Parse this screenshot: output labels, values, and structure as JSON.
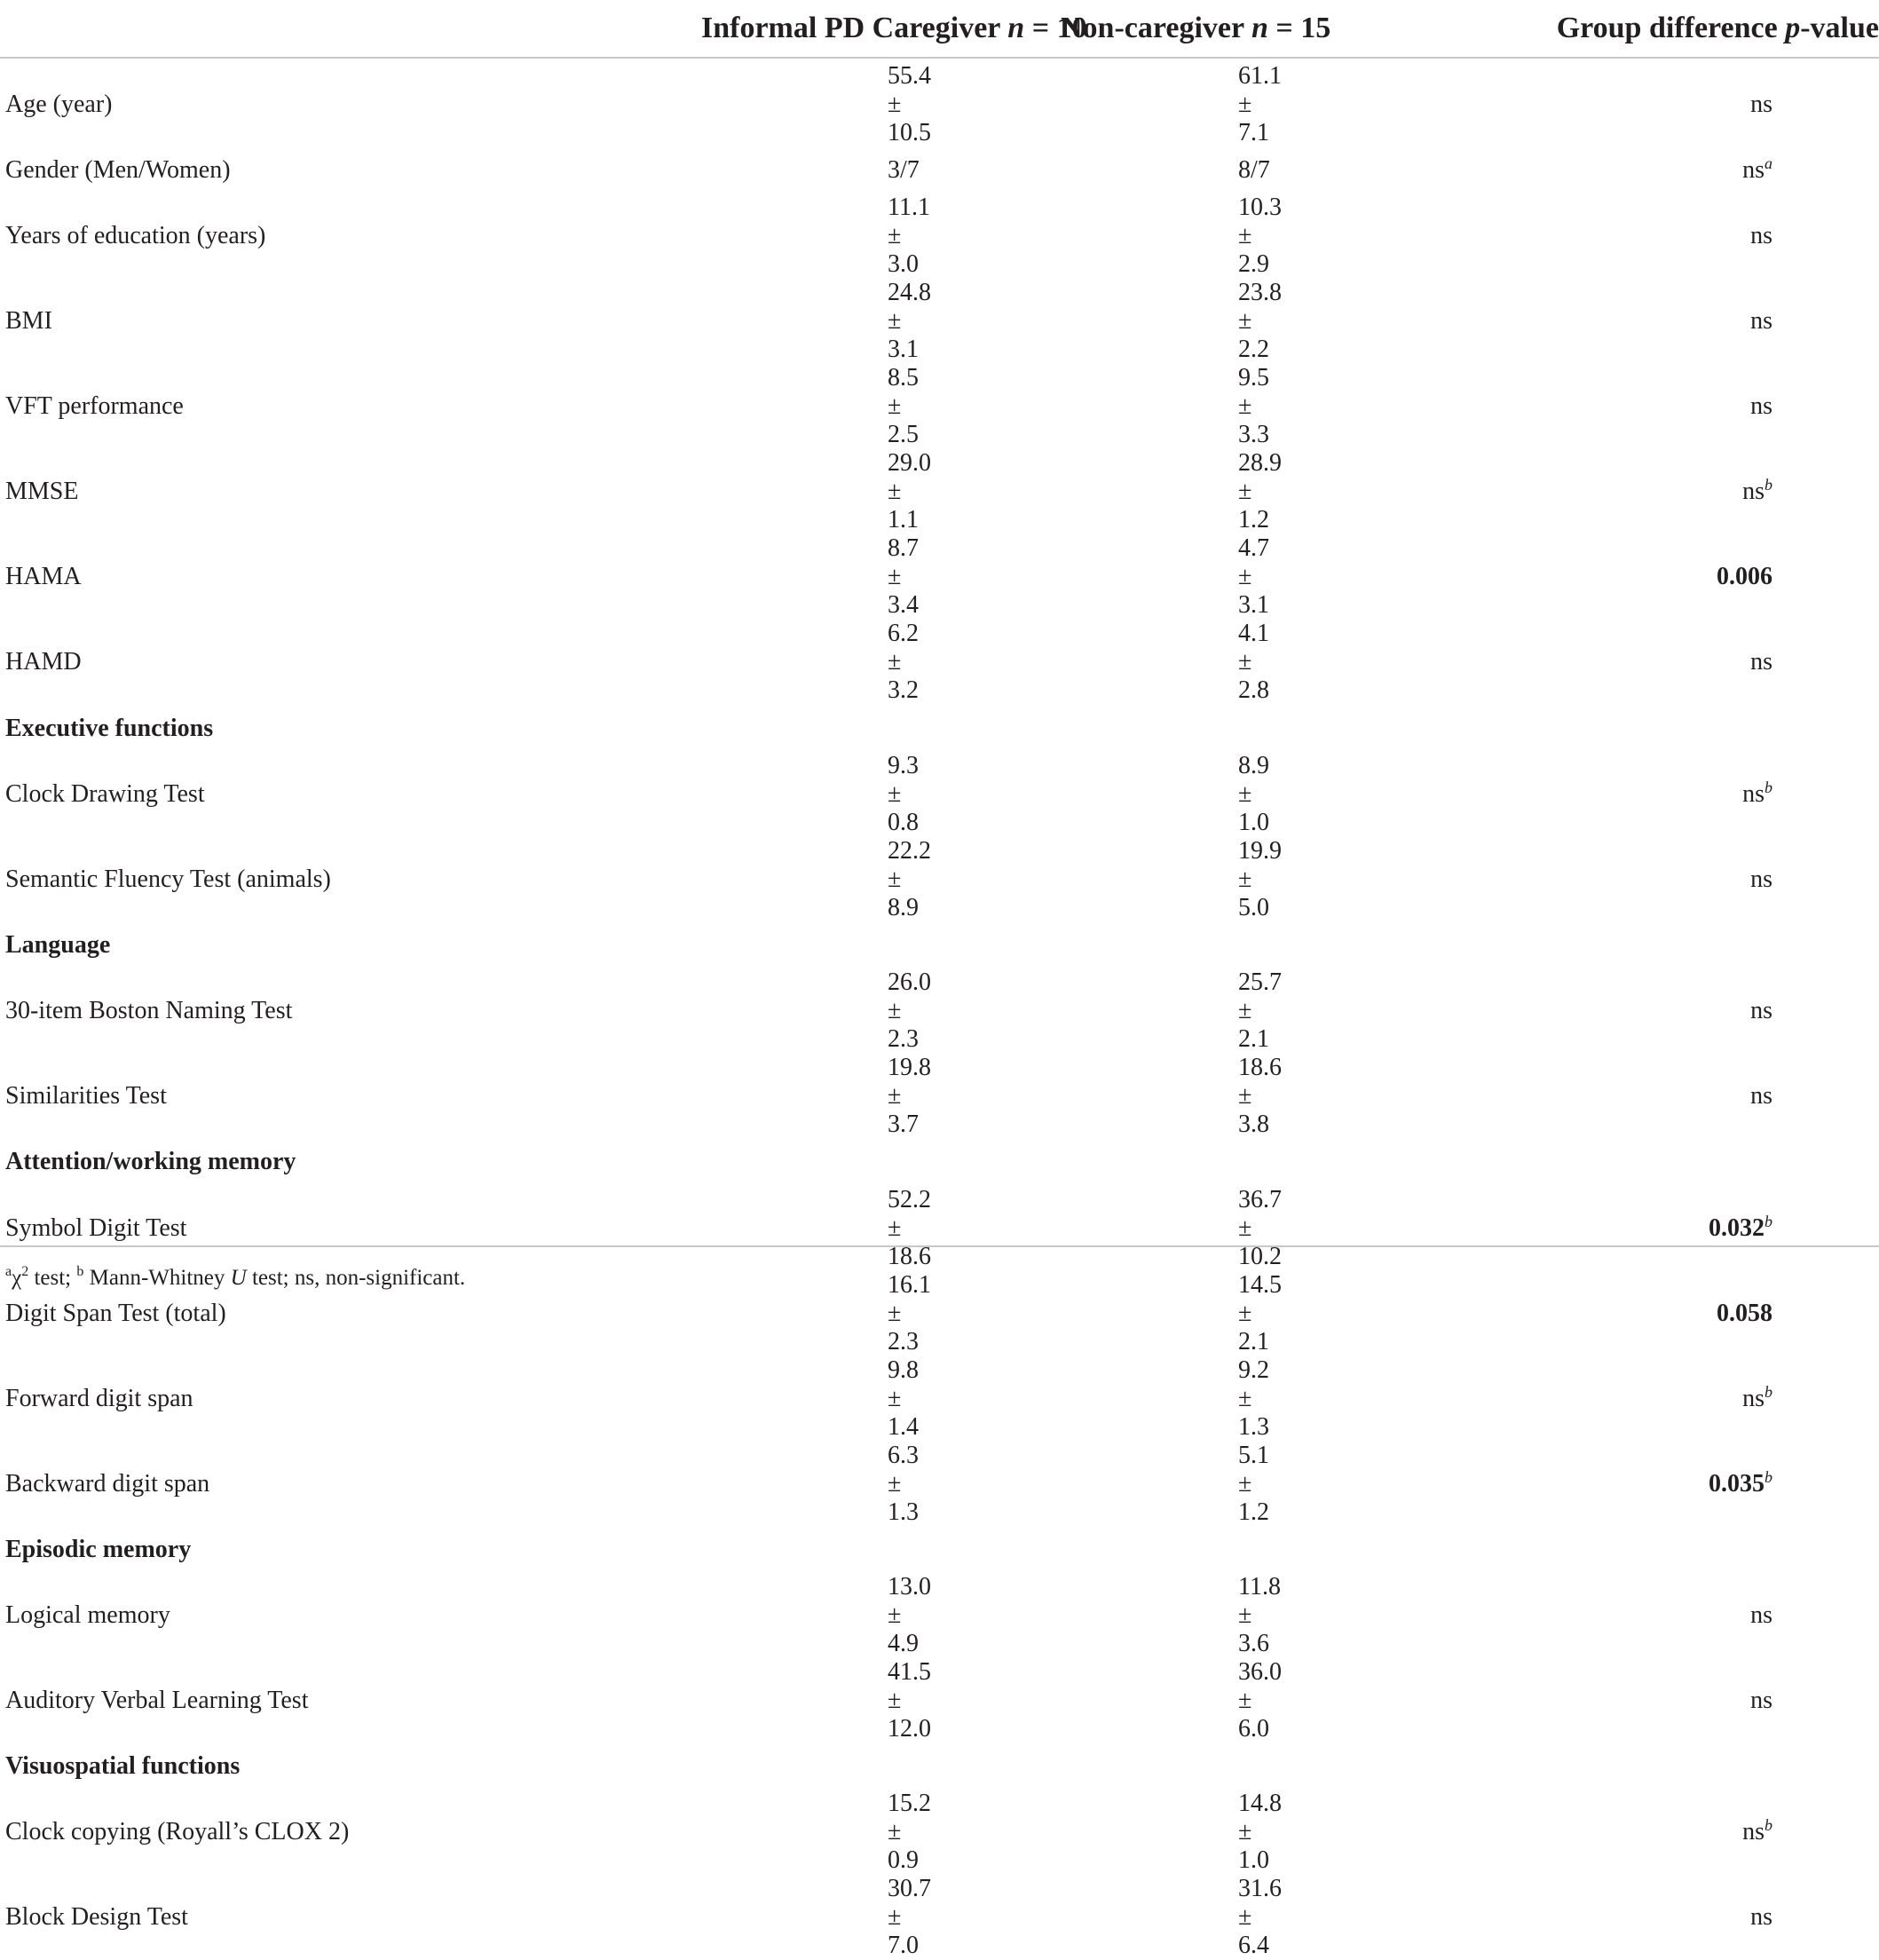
{
  "header": {
    "col1": {
      "text": "Informal PD Caregiver ",
      "n_symbol": "n",
      "n_value": " = 10"
    },
    "col2": {
      "text": "Non-caregiver ",
      "n_symbol": "n",
      "n_value": " = 15"
    },
    "col3": {
      "text": "Group difference ",
      "p_symbol": "p",
      "suffix": "-value"
    }
  },
  "rows": [
    {
      "type": "data",
      "label": "Age (year)",
      "caregiver": "55.4 ± 10.5",
      "noncaregiver": "61.1 ± 7.1",
      "p": "ns",
      "p_sup": "",
      "p_bold": false
    },
    {
      "type": "data",
      "label": "Gender (Men/Women)",
      "caregiver": "3/7",
      "noncaregiver": "8/7",
      "p": "ns",
      "p_sup": "a",
      "p_bold": false
    },
    {
      "type": "data",
      "label": "Years of education (years)",
      "caregiver": "11.1 ± 3.0",
      "noncaregiver": "10.3 ± 2.9",
      "p": "ns",
      "p_sup": "",
      "p_bold": false
    },
    {
      "type": "data",
      "label": "BMI",
      "caregiver": "24.8 ± 3.1",
      "noncaregiver": "23.8 ± 2.2",
      "p": "ns",
      "p_sup": "",
      "p_bold": false
    },
    {
      "type": "data",
      "label": "VFT performance",
      "caregiver": "8.5 ± 2.5",
      "noncaregiver": "9.5 ± 3.3",
      "p": "ns",
      "p_sup": "",
      "p_bold": false
    },
    {
      "type": "data",
      "label": "MMSE",
      "caregiver": "29.0 ± 1.1",
      "noncaregiver": "28.9 ± 1.2",
      "p": "ns",
      "p_sup": "b",
      "p_bold": false
    },
    {
      "type": "data",
      "label": "HAMA",
      "caregiver": "8.7 ± 3.4",
      "noncaregiver": "4.7 ± 3.1",
      "p": "0.006",
      "p_sup": "",
      "p_bold": true
    },
    {
      "type": "data",
      "label": "HAMD",
      "caregiver": "6.2 ± 3.2",
      "noncaregiver": "4.1 ± 2.8",
      "p": "ns",
      "p_sup": "",
      "p_bold": false
    },
    {
      "type": "section",
      "label": "Executive functions"
    },
    {
      "type": "data",
      "label": "Clock Drawing Test",
      "caregiver": "9.3 ± 0.8",
      "noncaregiver": "8.9 ± 1.0",
      "p": "ns",
      "p_sup": "b",
      "p_bold": false
    },
    {
      "type": "data",
      "label": "Semantic Fluency Test (animals)",
      "caregiver": "22.2 ± 8.9",
      "noncaregiver": "19.9 ± 5.0",
      "p": "ns",
      "p_sup": "",
      "p_bold": false
    },
    {
      "type": "section",
      "label": "Language"
    },
    {
      "type": "data",
      "label": "30-item Boston Naming Test",
      "caregiver": "26.0 ± 2.3",
      "noncaregiver": "25.7 ± 2.1",
      "p": "ns",
      "p_sup": "",
      "p_bold": false
    },
    {
      "type": "data",
      "label": "Similarities Test",
      "caregiver": "19.8 ± 3.7",
      "noncaregiver": "18.6 ± 3.8",
      "p": "ns",
      "p_sup": "",
      "p_bold": false
    },
    {
      "type": "section",
      "label": "Attention/working memory"
    },
    {
      "type": "data",
      "label": "Symbol Digit Test",
      "caregiver": "52.2 ± 18.6",
      "noncaregiver": "36.7 ± 10.2",
      "p": "0.032",
      "p_sup": "b",
      "p_bold": true
    },
    {
      "type": "data",
      "label": "Digit Span Test (total)",
      "caregiver": "16.1 ± 2.3",
      "noncaregiver": "14.5 ± 2.1",
      "p": "0.058",
      "p_sup": "",
      "p_bold": true
    },
    {
      "type": "data",
      "label": "Forward digit span",
      "caregiver": "9.8 ± 1.4",
      "noncaregiver": "9.2 ± 1.3",
      "p": "ns",
      "p_sup": "b",
      "p_bold": false
    },
    {
      "type": "data",
      "label": "Backward digit span",
      "caregiver": "6.3 ± 1.3",
      "noncaregiver": "5.1 ± 1.2",
      "p": "0.035",
      "p_sup": "b",
      "p_bold": true
    },
    {
      "type": "section",
      "label": "Episodic memory"
    },
    {
      "type": "data",
      "label": "Logical memory",
      "caregiver": "13.0 ± 4.9",
      "noncaregiver": "11.8 ± 3.6",
      "p": "ns",
      "p_sup": "",
      "p_bold": false
    },
    {
      "type": "data",
      "label": "Auditory Verbal Learning Test",
      "caregiver": "41.5 ± 12.0",
      "noncaregiver": "36.0 ± 6.0",
      "p": "ns",
      "p_sup": "",
      "p_bold": false
    },
    {
      "type": "section",
      "label": "Visuospatial functions"
    },
    {
      "type": "data",
      "label": "Clock copying (Royall’s CLOX 2)",
      "caregiver": "15.2 ± 0.9",
      "noncaregiver": "14.8 ± 1.0",
      "p": "ns",
      "p_sup": "b",
      "p_bold": false
    },
    {
      "type": "data",
      "label": "Block Design Test",
      "caregiver": "30.7 ± 7.0",
      "noncaregiver": "31.6 ± 6.4",
      "p": "ns",
      "p_sup": "",
      "p_bold": false
    }
  ],
  "footnote": {
    "a_mark": "a",
    "chi": "χ",
    "chi_sup": "2",
    "chi_text": " test; ",
    "b_mark": "b",
    "mw_text": " Mann-Whitney ",
    "u_symbol": "U",
    "rest": " test; ns, non-significant."
  }
}
